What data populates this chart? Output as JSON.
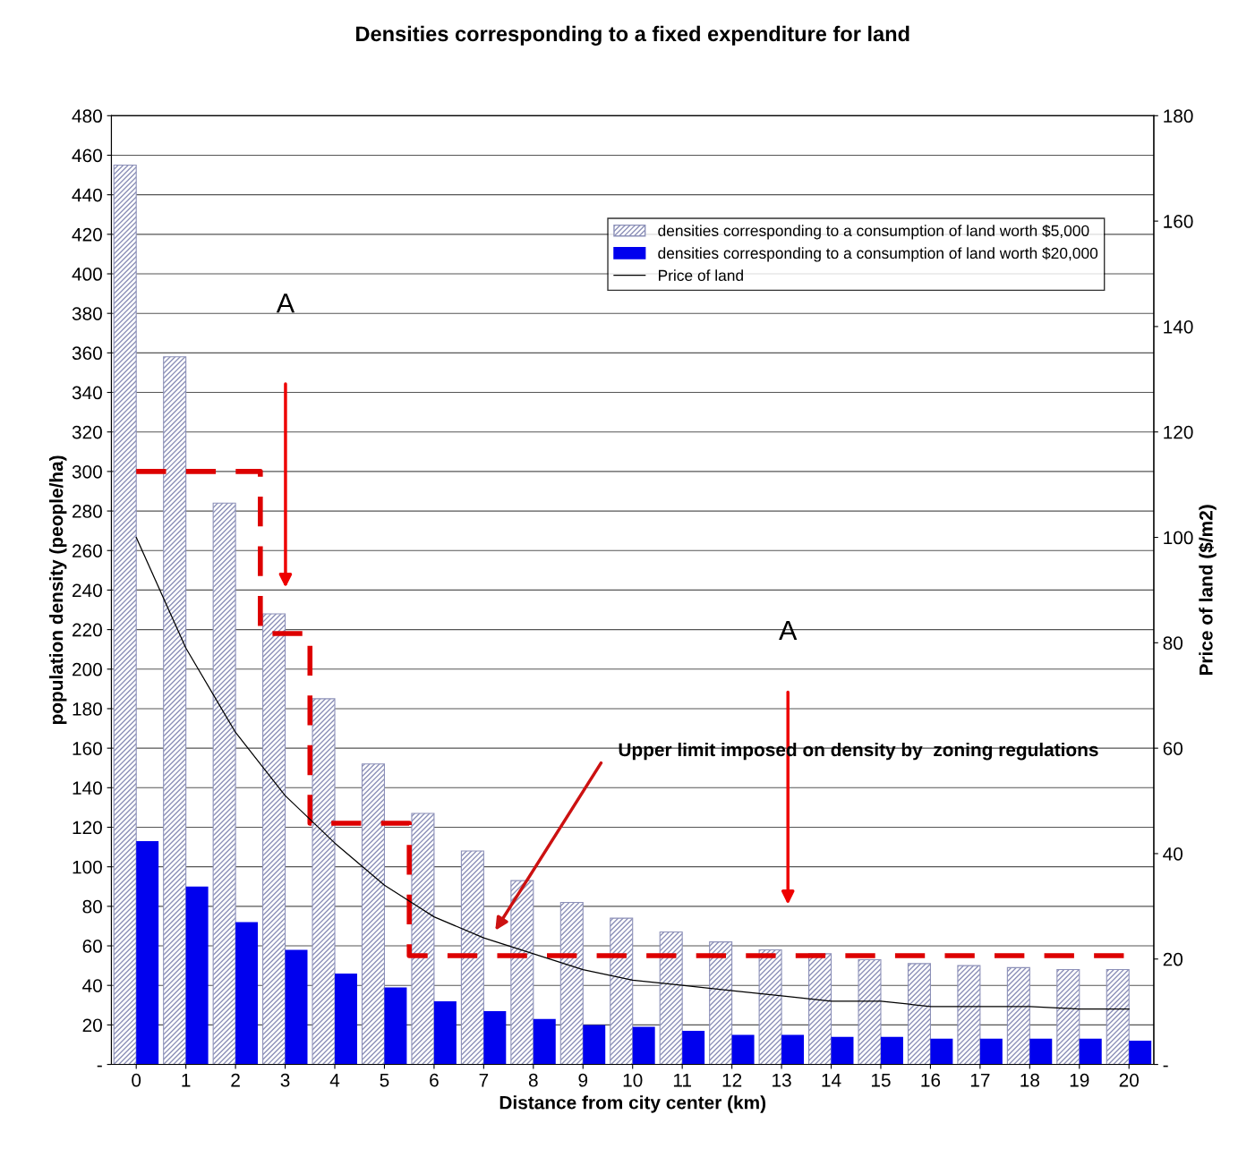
{
  "chart_data": {
    "type": "bar",
    "title": "Densities corresponding to a fixed expenditure for land",
    "xlabel": "Distance from city center (km)",
    "ylabel": "population density (people/ha)",
    "y2label": "Price of land ($/m2)",
    "categories": [
      "0",
      "1",
      "2",
      "3",
      "4",
      "5",
      "6",
      "7",
      "8",
      "9",
      "10",
      "11",
      "12",
      "13",
      "14",
      "15",
      "16",
      "17",
      "18",
      "19",
      "20"
    ],
    "series": [
      {
        "name": "densities corresponding to a consumption of land worth $5,000",
        "color": "#8c90b8",
        "values": [
          455,
          358,
          284,
          228,
          185,
          152,
          127,
          108,
          93,
          82,
          74,
          67,
          62,
          58,
          56,
          53,
          51,
          50,
          49,
          48,
          48
        ]
      },
      {
        "name": "densities corresponding to a consumption of land worth $20,000",
        "color": "#0000ee",
        "values": [
          113,
          90,
          72,
          58,
          46,
          39,
          32,
          27,
          23,
          20,
          19,
          17,
          15,
          15,
          14,
          14,
          13,
          13,
          13,
          13,
          12
        ]
      },
      {
        "name": "Price of land",
        "type": "line",
        "axis": "y2",
        "color": "#000000",
        "values": [
          100,
          79,
          63,
          51,
          42,
          34,
          28,
          24,
          21,
          18,
          16,
          15,
          14,
          13,
          12,
          12,
          11,
          11,
          11,
          10.5,
          10.5
        ]
      },
      {
        "type": "step",
        "color": "#dd0000",
        "line_style": "dashed",
        "values": [
          300,
          300,
          300,
          218,
          122,
          122,
          55,
          55,
          55,
          55,
          55,
          55,
          55,
          55,
          55,
          55,
          55,
          55,
          55,
          55,
          55
        ]
      }
    ],
    "ylim": [
      0,
      480
    ],
    "yticks": [
      {
        "value": 0,
        "label": "-"
      },
      20,
      40,
      60,
      80,
      100,
      120,
      140,
      160,
      180,
      200,
      220,
      240,
      260,
      280,
      300,
      320,
      340,
      360,
      380,
      400,
      420,
      440,
      460,
      480
    ],
    "y2lim": [
      0,
      180
    ],
    "y2ticks": [
      {
        "value": 0,
        "label": "-"
      },
      20,
      40,
      60,
      80,
      100,
      120,
      140,
      160,
      180
    ],
    "grid": "y",
    "legend": "top right",
    "annotations": [
      "A",
      "A",
      "Upper limit imposed on density by  zoning regulations"
    ]
  }
}
